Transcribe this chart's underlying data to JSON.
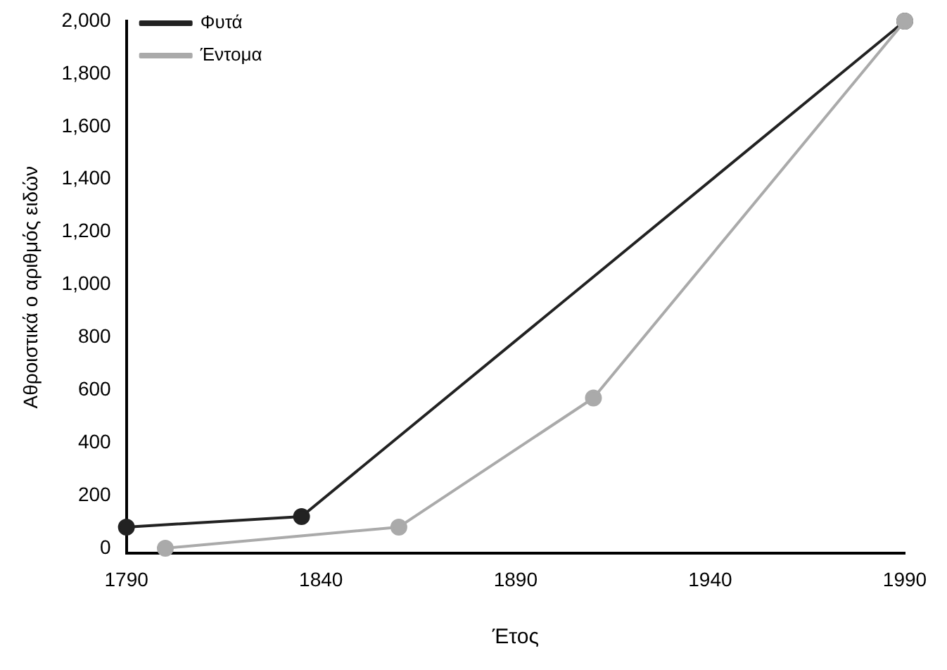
{
  "chart_data": {
    "type": "line",
    "xlabel": "Έτος",
    "ylabel": "Αθροιστικά ο αριθμός ειδών",
    "xlim": [
      1790,
      1990
    ],
    "xticks": [
      1790,
      1840,
      1890,
      1940,
      1990
    ],
    "ylim": [
      -20,
      2000
    ],
    "yticks": [
      0,
      200,
      400,
      600,
      800,
      {
        "value": 1000,
        "label": "1,000"
      },
      {
        "value": 1200,
        "label": "1,200"
      },
      {
        "value": 1400,
        "label": "1,400"
      },
      {
        "value": 1600,
        "label": "1,600"
      },
      {
        "value": 1800,
        "label": "1,800"
      },
      {
        "value": 2000,
        "label": "2,000"
      }
    ],
    "series": [
      {
        "name": "Φυτά",
        "color": "#222222",
        "x": [
          1790,
          1835,
          1990
        ],
        "values": [
          80,
          120,
          2000
        ]
      },
      {
        "name": "Έντομα",
        "color": "#aaaaaa",
        "x": [
          1800,
          1860,
          1910,
          1990
        ],
        "values": [
          0,
          80,
          570,
          2000
        ]
      }
    ],
    "grid": false,
    "legend": "top left",
    "marker": "circle",
    "line_style": "solid"
  }
}
